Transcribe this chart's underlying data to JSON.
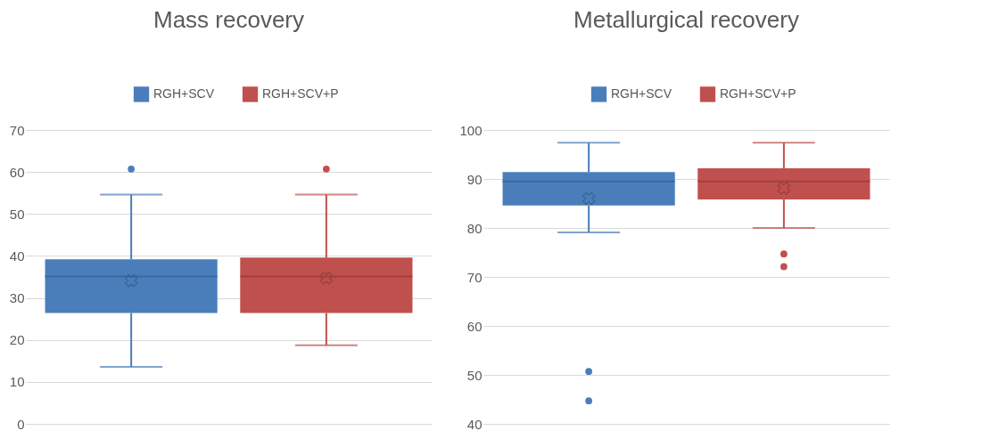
{
  "chart_data": [
    {
      "type": "box",
      "title": "Mass recovery",
      "categories": [
        null
      ],
      "ylim": [
        0,
        70
      ],
      "yticks": [
        0,
        10,
        20,
        30,
        40,
        50,
        60,
        70
      ],
      "grid": "y",
      "legend": "top",
      "tick_labels": "y",
      "series": [
        {
          "name": "RGH+SCV",
          "color": "#4a7ebb",
          "boxes": [
            {
              "low": 13.6,
              "q1": 26.4,
              "median": 35.1,
              "q3": 39.2,
              "high": 54.6,
              "mean": 34.1,
              "outliers": [
                60.7
              ]
            }
          ]
        },
        {
          "name": "RGH+SCV+P",
          "color": "#c0504d",
          "boxes": [
            {
              "low": 18.7,
              "q1": 26.4,
              "median": 35.1,
              "q3": 39.6,
              "high": 54.6,
              "mean": 34.7,
              "outliers": [
                60.7
              ]
            }
          ]
        }
      ]
    },
    {
      "type": "box",
      "title": "Metallurgical recovery",
      "categories": [
        null
      ],
      "ylim": [
        40,
        100
      ],
      "yticks": [
        40,
        50,
        60,
        70,
        80,
        90,
        100
      ],
      "grid": "y",
      "legend": "top",
      "tick_labels": "y",
      "series": [
        {
          "name": "RGH+SCV",
          "color": "#4a7ebb",
          "boxes": [
            {
              "low": 79.1,
              "q1": 84.6,
              "median": 89.5,
              "q3": 91.4,
              "high": 97.4,
              "mean": 86.0,
              "outliers": [
                50.7,
                44.7
              ]
            }
          ]
        },
        {
          "name": "RGH+SCV+P",
          "color": "#c0504d",
          "boxes": [
            {
              "low": 80.0,
              "q1": 85.8,
              "median": 89.5,
              "q3": 92.2,
              "high": 97.4,
              "mean": 88.1,
              "outliers": [
                74.7,
                72.1
              ]
            }
          ]
        }
      ]
    }
  ]
}
